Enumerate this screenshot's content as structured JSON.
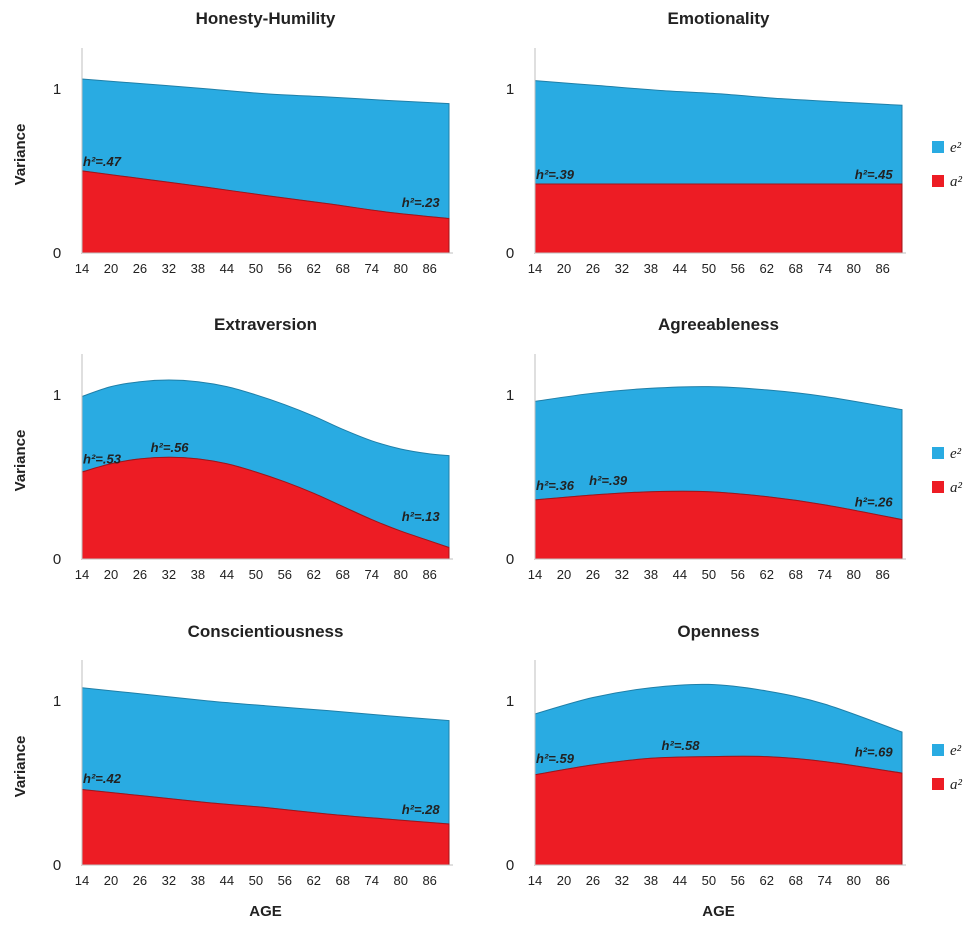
{
  "chart_data": {
    "type": "area",
    "x_ticks": [
      "14",
      "20",
      "26",
      "32",
      "38",
      "44",
      "50",
      "56",
      "62",
      "68",
      "74",
      "80",
      "86"
    ],
    "x_range": [
      14,
      90
    ],
    "y_ticks": [
      "0",
      "1"
    ],
    "y_range": [
      0,
      1.2
    ],
    "ylabel": "Variance",
    "xlabel": "AGE",
    "legend_items": [
      {
        "label": "e²",
        "color": "#29ABE2"
      },
      {
        "label": "a²",
        "color": "#ED1C24"
      }
    ],
    "colors": {
      "e2": "#29ABE2",
      "a2": "#ED1C24"
    },
    "panels": [
      {
        "title": "Honesty-Humility",
        "x": [
          14,
          27,
          40,
          52,
          65,
          77,
          90
        ],
        "a2": [
          0.5,
          0.45,
          0.4,
          0.35,
          0.3,
          0.25,
          0.21
        ],
        "total": [
          1.06,
          1.03,
          1.0,
          0.97,
          0.95,
          0.93,
          0.91
        ],
        "annotations": [
          {
            "text": "h²=.47",
            "x": 14,
            "y": 0.5
          },
          {
            "text": "h²=.23",
            "x": 80,
            "y": 0.25
          }
        ]
      },
      {
        "title": "Emotionality",
        "x": [
          14,
          27,
          40,
          52,
          65,
          77,
          90
        ],
        "a2": [
          0.42,
          0.42,
          0.42,
          0.42,
          0.42,
          0.42,
          0.42
        ],
        "total": [
          1.05,
          1.02,
          0.99,
          0.97,
          0.94,
          0.92,
          0.9
        ],
        "annotations": [
          {
            "text": "h²=.39",
            "x": 14,
            "y": 0.42
          },
          {
            "text": "h²=.45",
            "x": 80,
            "y": 0.42
          }
        ]
      },
      {
        "title": "Extraversion",
        "x": [
          14,
          20,
          26,
          32,
          38,
          44,
          50,
          56,
          62,
          68,
          74,
          80,
          86,
          90
        ],
        "a2": [
          0.53,
          0.58,
          0.61,
          0.62,
          0.61,
          0.58,
          0.53,
          0.47,
          0.4,
          0.32,
          0.24,
          0.17,
          0.11,
          0.07
        ],
        "total": [
          0.99,
          1.05,
          1.08,
          1.09,
          1.08,
          1.05,
          1.0,
          0.94,
          0.87,
          0.79,
          0.72,
          0.67,
          0.64,
          0.63
        ],
        "annotations": [
          {
            "text": "h²=.53",
            "x": 14,
            "y": 0.55
          },
          {
            "text": "h²=.56",
            "x": 28,
            "y": 0.62
          },
          {
            "text": "h²=.13",
            "x": 80,
            "y": 0.2
          }
        ]
      },
      {
        "title": "Agreeableness",
        "x": [
          14,
          26,
          38,
          50,
          62,
          74,
          90
        ],
        "a2": [
          0.36,
          0.39,
          0.41,
          0.41,
          0.38,
          0.33,
          0.24
        ],
        "total": [
          0.96,
          1.01,
          1.04,
          1.05,
          1.03,
          0.99,
          0.91
        ],
        "annotations": [
          {
            "text": "h²=.36",
            "x": 14,
            "y": 0.39
          },
          {
            "text": "h²=.39",
            "x": 25,
            "y": 0.42
          },
          {
            "text": "h²=.26",
            "x": 80,
            "y": 0.29
          }
        ]
      },
      {
        "title": "Conscientiousness",
        "x": [
          14,
          27,
          40,
          52,
          65,
          77,
          90
        ],
        "a2": [
          0.46,
          0.42,
          0.38,
          0.35,
          0.31,
          0.28,
          0.25
        ],
        "total": [
          1.08,
          1.04,
          1.0,
          0.97,
          0.94,
          0.91,
          0.88
        ],
        "annotations": [
          {
            "text": "h²=.42",
            "x": 14,
            "y": 0.47
          },
          {
            "text": "h²=.28",
            "x": 80,
            "y": 0.28
          }
        ]
      },
      {
        "title": "Openness",
        "x": [
          14,
          26,
          38,
          50,
          62,
          74,
          90
        ],
        "a2": [
          0.55,
          0.61,
          0.65,
          0.66,
          0.66,
          0.63,
          0.56
        ],
        "total": [
          0.92,
          1.02,
          1.08,
          1.1,
          1.06,
          0.98,
          0.81
        ],
        "annotations": [
          {
            "text": "h²=.59",
            "x": 14,
            "y": 0.59
          },
          {
            "text": "h²=.58",
            "x": 40,
            "y": 0.67
          },
          {
            "text": "h²=.69",
            "x": 80,
            "y": 0.63
          }
        ]
      }
    ]
  }
}
